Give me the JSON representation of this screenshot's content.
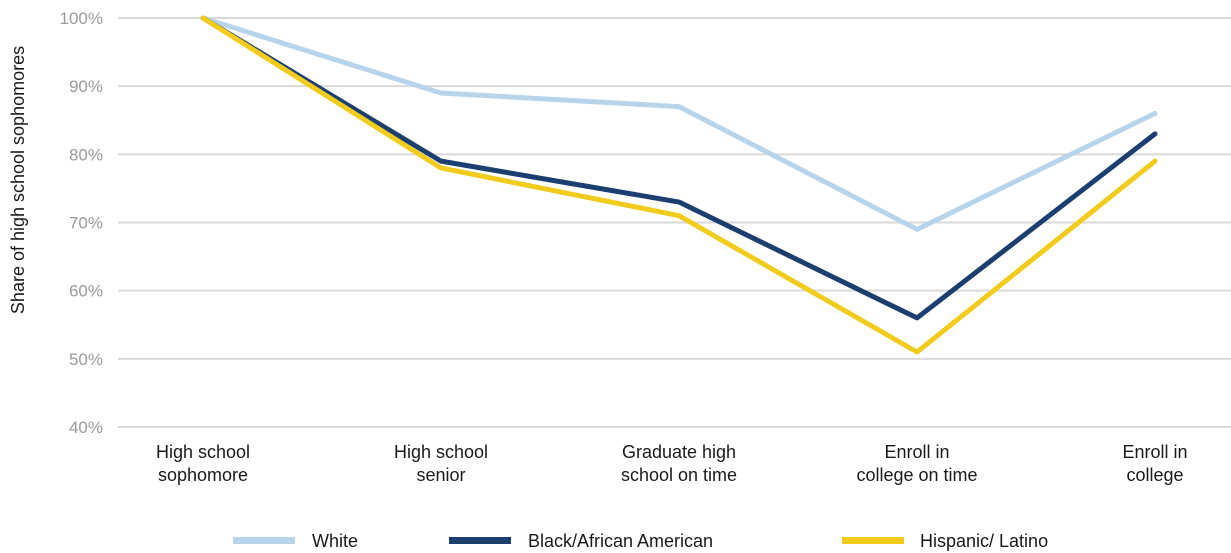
{
  "chart_data": {
    "type": "line",
    "title": "",
    "xlabel": "",
    "ylabel": "Share of high school sophomores",
    "ylim": [
      40,
      100
    ],
    "yticks": [
      "40%",
      "50%",
      "60%",
      "70%",
      "80%",
      "90%",
      "100%"
    ],
    "grid": true,
    "legend_position": "bottom",
    "categories": [
      [
        "High school",
        "sophomore"
      ],
      [
        "High school",
        "senior"
      ],
      [
        "Graduate high",
        "school on time"
      ],
      [
        "Enroll in",
        "college on time"
      ],
      [
        "Enroll in",
        "college"
      ]
    ],
    "series": [
      {
        "name": "White",
        "color": "#b8d4ea",
        "values": [
          100,
          89,
          87,
          69,
          86
        ]
      },
      {
        "name": "Black/African American",
        "color": "#1b3f6e",
        "values": [
          100,
          79,
          73,
          56,
          83
        ]
      },
      {
        "name": "Hispanic/ Latino",
        "color": "#f2cc1c",
        "values": [
          100,
          78,
          71,
          51,
          79
        ]
      }
    ]
  }
}
